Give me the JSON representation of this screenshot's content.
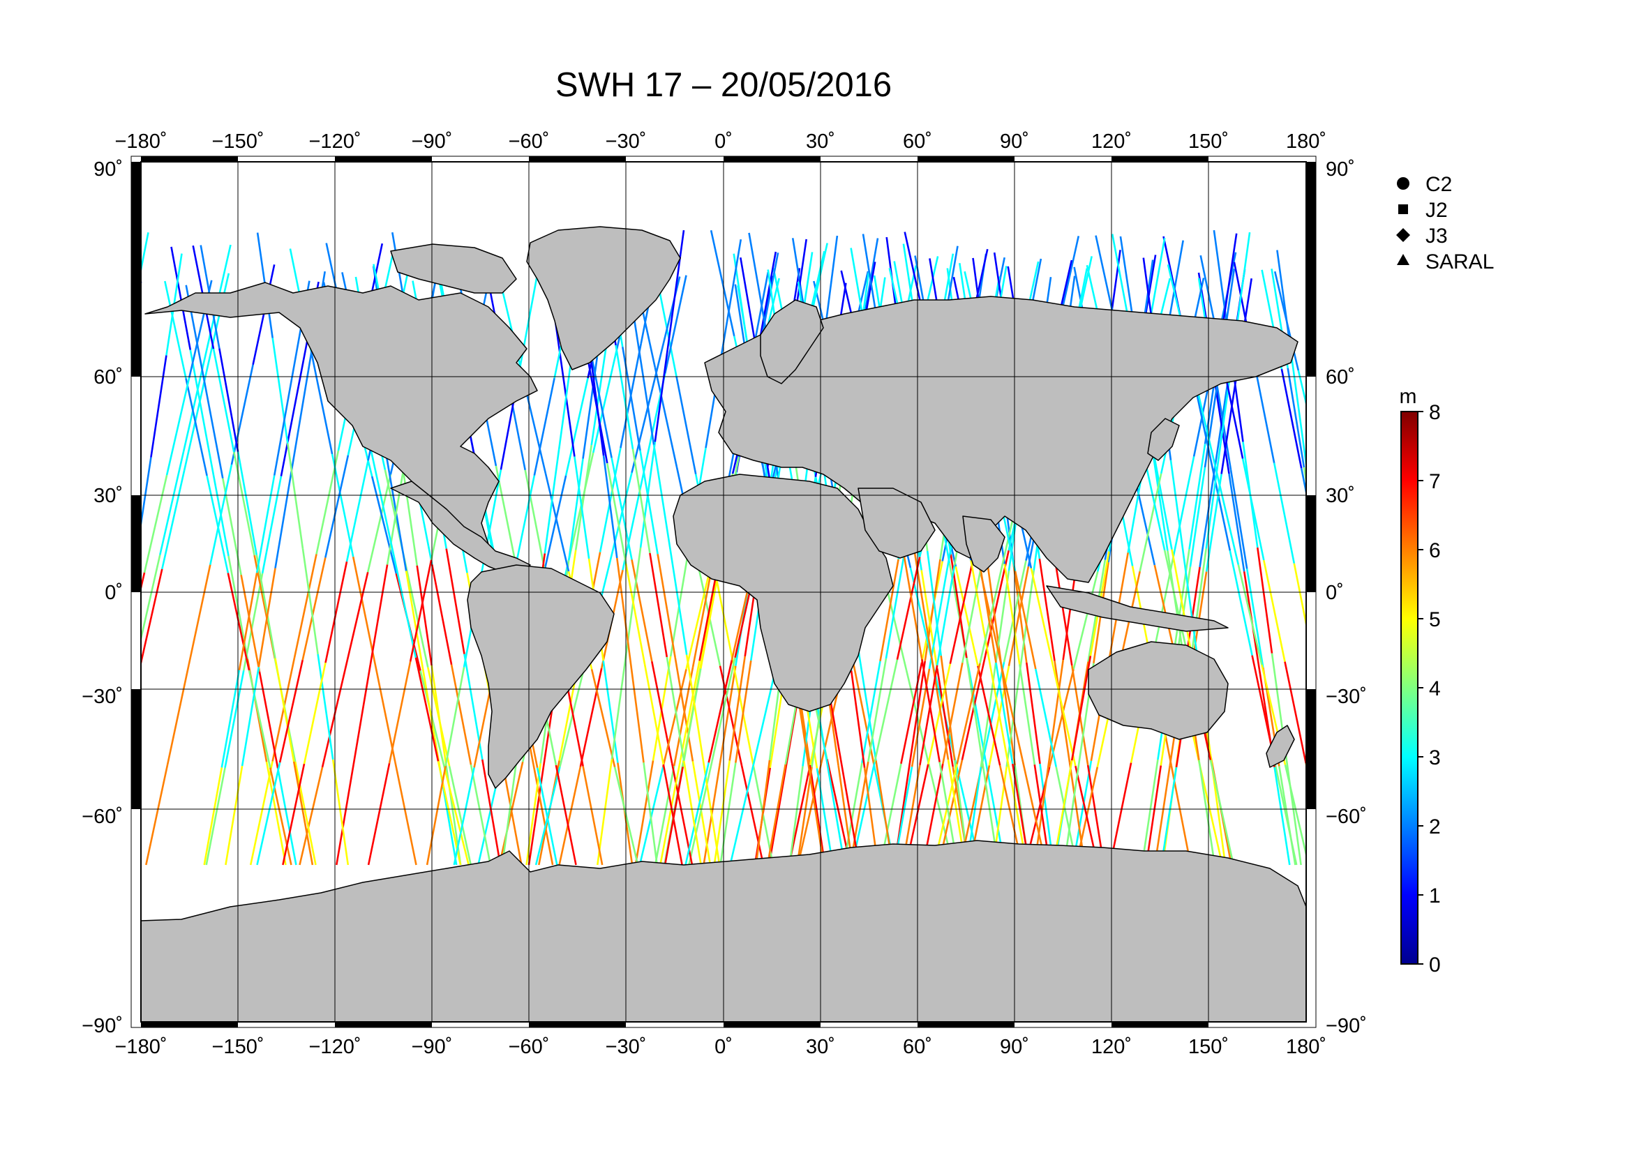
{
  "title": "SWH 17 – 20/05/2016",
  "lon_ticks": [
    "−180˚",
    "−150˚",
    "−120˚",
    "−90˚",
    "−60˚",
    "−30˚",
    "0˚",
    "30˚",
    "60˚",
    "90˚",
    "120˚",
    "150˚",
    "180˚"
  ],
  "lat_ticks": [
    "90˚",
    "60˚",
    "30˚",
    "0˚",
    "−30˚",
    "−60˚",
    "−90˚"
  ],
  "legend": [
    {
      "label": "C2",
      "icon": "circle-icon"
    },
    {
      "label": "J2",
      "icon": "square-icon"
    },
    {
      "label": "J3",
      "icon": "diamond-icon"
    },
    {
      "label": "SARAL",
      "icon": "triangle-icon"
    }
  ],
  "colorbar": {
    "unit": "m",
    "ticks": [
      "8",
      "7",
      "6",
      "5",
      "4",
      "3",
      "2",
      "1",
      "0"
    ],
    "min": 0,
    "max": 8,
    "colors": [
      "#00008f",
      "#0000ff",
      "#0080ff",
      "#00ffff",
      "#80ff80",
      "#ffff00",
      "#ff8000",
      "#ff0000",
      "#800000"
    ]
  },
  "colors": {
    "land": "#bebebe",
    "coast": "#000000",
    "grid": "#000000",
    "ocean": "#ffffff"
  }
}
